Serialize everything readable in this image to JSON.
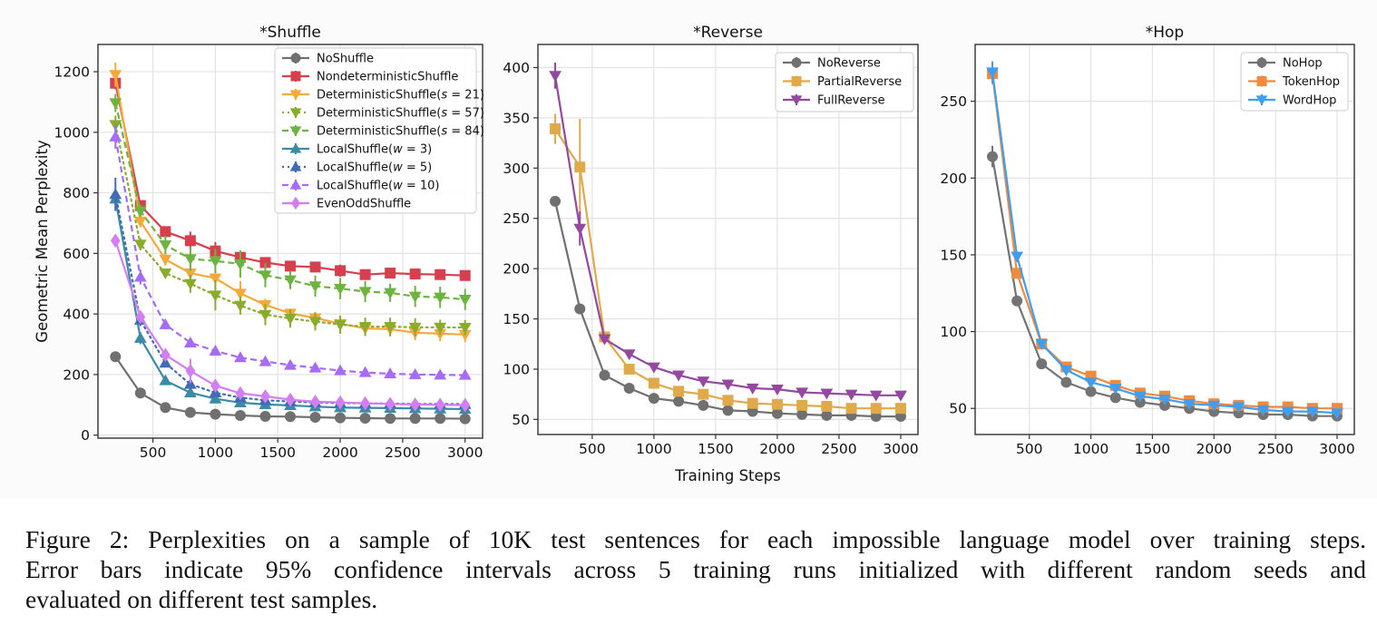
{
  "caption": {
    "lines": [
      "Figure 2: Perplexities on a sample of 10K test sentences for each impossible language model over training steps.",
      "Error bars indicate 95% confidence intervals across 5 training runs initialized with different random seeds and",
      "evaluated on different test samples."
    ]
  },
  "chart_data": [
    {
      "type": "line",
      "title": "*Shuffle",
      "xlabel": "",
      "ylabel": "Geometric Mean Perplexity",
      "x": [
        200,
        400,
        600,
        800,
        1000,
        1200,
        1400,
        1600,
        1800,
        2000,
        2200,
        2400,
        2600,
        2800,
        3000
      ],
      "xlim": [
        60,
        3140
      ],
      "ylim": [
        -10,
        1290
      ],
      "xticks": [
        500,
        1000,
        1500,
        2000,
        2500,
        3000
      ],
      "yticks": [
        0,
        200,
        400,
        600,
        800,
        1000,
        1200
      ],
      "grid": true,
      "legend": "top-right",
      "series": [
        {
          "name": "NoShuffle",
          "color": "#707070",
          "marker": "circle",
          "dash": "solid",
          "values": [
            259,
            139,
            91,
            75,
            69,
            65,
            62,
            61,
            59,
            57,
            56,
            55,
            55,
            55,
            54
          ],
          "err": [
            8,
            5,
            3,
            2,
            2,
            2,
            2,
            2,
            2,
            2,
            2,
            2,
            2,
            2,
            2
          ]
        },
        {
          "name": "NondeterministicShuffle",
          "color": "#d6404e",
          "marker": "square",
          "dash": "solid",
          "values": [
            1162,
            758,
            672,
            642,
            608,
            587,
            570,
            558,
            555,
            543,
            530,
            535,
            532,
            530,
            527
          ],
          "err": [
            20,
            15,
            15,
            30,
            30,
            15,
            15,
            15,
            10,
            20,
            15,
            15,
            10,
            10,
            10
          ]
        },
        {
          "name": "DeterministicShuffle(s=21)",
          "label_main": "DeterministicShuffle(",
          "label_var": "s",
          "label_rest": " = 21)",
          "color": "#f5a93a",
          "marker": "triangle-down",
          "dash": "solid",
          "values": [
            1190,
            706,
            580,
            535,
            518,
            468,
            430,
            402,
            387,
            368,
            352,
            350,
            338,
            335,
            332
          ],
          "err": [
            40,
            20,
            20,
            25,
            25,
            40,
            20,
            15,
            20,
            25,
            25,
            25,
            25,
            25,
            25
          ]
        },
        {
          "name": "DeterministicShuffle(s=57)",
          "label_main": "DeterministicShuffle(",
          "label_var": "s",
          "label_rest": " = 57)",
          "color": "#8aac2c",
          "marker": "triangle-down",
          "dash": "dotted",
          "values": [
            1025,
            630,
            535,
            500,
            462,
            428,
            398,
            385,
            375,
            365,
            358,
            358,
            356,
            356,
            355
          ],
          "err": [
            30,
            20,
            15,
            30,
            50,
            30,
            35,
            30,
            30,
            30,
            30,
            30,
            30,
            25,
            25
          ]
        },
        {
          "name": "DeterministicShuffle(s=84)",
          "label_main": "DeterministicShuffle(",
          "label_var": "s",
          "label_rest": " = 84)",
          "color": "#6db33f",
          "marker": "triangle-down",
          "dash": "dashed",
          "values": [
            1097,
            740,
            628,
            582,
            575,
            565,
            528,
            512,
            492,
            484,
            474,
            470,
            458,
            455,
            448
          ],
          "err": [
            30,
            20,
            30,
            40,
            40,
            45,
            40,
            30,
            35,
            35,
            35,
            30,
            35,
            35,
            35
          ]
        },
        {
          "name": "LocalShuffle(w=3)",
          "label_main": "LocalShuffle(",
          "label_var": "w",
          "label_rest": " = 3)",
          "color": "#3b8ba6",
          "marker": "triangle-up",
          "dash": "solid",
          "values": [
            780,
            320,
            180,
            140,
            120,
            107,
            101,
            98,
            94,
            91,
            90,
            89,
            88,
            87,
            86
          ],
          "err": [
            30,
            20,
            8,
            6,
            5,
            4,
            3,
            3,
            3,
            3,
            3,
            3,
            3,
            3,
            3
          ]
        },
        {
          "name": "LocalShuffle(w=5)",
          "label_main": "LocalShuffle(",
          "label_var": "w",
          "label_rest": " = 5)",
          "color": "#3f6cb5",
          "marker": "triangle-up",
          "dash": "dotted",
          "values": [
            795,
            380,
            238,
            168,
            140,
            124,
            115,
            111,
            108,
            106,
            105,
            104,
            103,
            103,
            102
          ],
          "err": [
            55,
            20,
            10,
            8,
            6,
            5,
            4,
            4,
            4,
            4,
            4,
            4,
            4,
            4,
            4
          ]
        },
        {
          "name": "LocalShuffle(w=10)",
          "label_main": "LocalShuffle(",
          "label_var": "w",
          "label_rest": " = 10)",
          "color": "#a66cf5",
          "marker": "triangle-up",
          "dash": "dashed",
          "values": [
            985,
            522,
            365,
            305,
            278,
            256,
            243,
            231,
            222,
            213,
            207,
            203,
            200,
            199,
            198
          ],
          "err": [
            40,
            25,
            15,
            12,
            10,
            8,
            6,
            6,
            6,
            6,
            5,
            5,
            5,
            5,
            5
          ]
        },
        {
          "name": "EvenOddShuffle",
          "color": "#d37ef2",
          "marker": "diamond",
          "dash": "solid",
          "values": [
            642,
            390,
            265,
            212,
            163,
            138,
            128,
            117,
            110,
            108,
            105,
            103,
            101,
            100,
            99
          ],
          "err": [
            15,
            15,
            15,
            40,
            15,
            10,
            8,
            8,
            8,
            8,
            8,
            8,
            8,
            8,
            8
          ]
        }
      ]
    },
    {
      "type": "line",
      "title": "*Reverse",
      "xlabel": "Training Steps",
      "ylabel": "",
      "x": [
        200,
        400,
        600,
        800,
        1000,
        1200,
        1400,
        1600,
        1800,
        2000,
        2200,
        2400,
        2600,
        2800,
        3000
      ],
      "xlim": [
        60,
        3140
      ],
      "ylim": [
        35,
        423
      ],
      "xticks": [
        500,
        1000,
        1500,
        2000,
        2500,
        3000
      ],
      "yticks": [
        50,
        100,
        150,
        200,
        250,
        300,
        350,
        400
      ],
      "grid": true,
      "legend": "top-right",
      "series": [
        {
          "name": "NoReverse",
          "color": "#707070",
          "marker": "circle",
          "dash": "solid",
          "values": [
            267,
            160,
            94,
            81,
            71,
            68,
            64,
            59,
            58,
            56,
            55,
            54,
            54,
            53,
            53
          ],
          "err": [
            5,
            4,
            2,
            2,
            2,
            2,
            1,
            1,
            1,
            1,
            1,
            1,
            1,
            1,
            1
          ]
        },
        {
          "name": "PartialReverse",
          "color": "#e0a94a",
          "marker": "square",
          "dash": "solid",
          "values": [
            339,
            301,
            132,
            100,
            86,
            78,
            75,
            69,
            66,
            65,
            64,
            63,
            61,
            61,
            61
          ],
          "err": [
            15,
            48,
            3,
            2,
            2,
            2,
            2,
            2,
            2,
            2,
            2,
            2,
            2,
            2,
            2
          ]
        },
        {
          "name": "FullReverse",
          "color": "#94489f",
          "marker": "triangle-down",
          "dash": "solid",
          "values": [
            392,
            240,
            130,
            115,
            102,
            94,
            88,
            85,
            81,
            80,
            77,
            76,
            75,
            74,
            74
          ],
          "err": [
            13,
            17,
            3,
            2,
            2,
            2,
            2,
            2,
            2,
            2,
            2,
            2,
            2,
            2,
            2
          ]
        }
      ]
    },
    {
      "type": "line",
      "title": "*Hop",
      "xlabel": "",
      "ylabel": "",
      "x": [
        200,
        400,
        600,
        800,
        1000,
        1200,
        1400,
        1600,
        1800,
        2000,
        2200,
        2400,
        2600,
        2800,
        3000
      ],
      "xlim": [
        60,
        3140
      ],
      "ylim": [
        33,
        287
      ],
      "xticks": [
        500,
        1000,
        1500,
        2000,
        2500,
        3000
      ],
      "yticks": [
        50,
        100,
        150,
        200,
        250
      ],
      "grid": true,
      "legend": "top-right",
      "series": [
        {
          "name": "NoHop",
          "color": "#737373",
          "marker": "circle",
          "dash": "solid",
          "values": [
            214,
            120,
            79,
            67,
            61,
            57,
            54,
            52,
            50,
            48,
            47,
            46,
            46,
            45,
            45
          ],
          "err": [
            7,
            3,
            2,
            1,
            1,
            1,
            1,
            1,
            1,
            1,
            1,
            1,
            1,
            1,
            1
          ]
        },
        {
          "name": "TokenHop",
          "color": "#f08a3e",
          "marker": "square",
          "dash": "solid",
          "values": [
            268,
            138,
            92,
            77,
            71,
            65,
            60,
            58,
            55,
            53,
            52,
            51,
            51,
            50,
            50
          ],
          "err": [
            7,
            3,
            3,
            2,
            2,
            2,
            2,
            2,
            2,
            2,
            2,
            2,
            2,
            2,
            2
          ]
        },
        {
          "name": "WordHop",
          "color": "#3f9ef0",
          "marker": "triangle-down",
          "dash": "solid",
          "values": [
            269,
            149,
            92,
            75,
            67,
            63,
            58,
            56,
            53,
            52,
            51,
            49,
            48,
            48,
            47
          ],
          "err": [
            7,
            3,
            2,
            1,
            1,
            1,
            1,
            1,
            1,
            1,
            1,
            1,
            1,
            1,
            1
          ]
        }
      ]
    }
  ]
}
